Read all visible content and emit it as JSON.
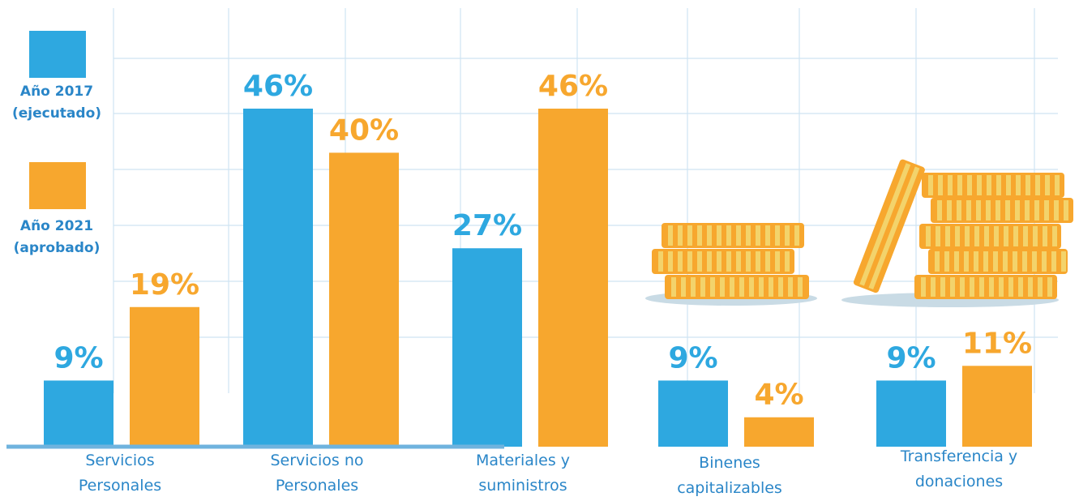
{
  "colors": {
    "series_2017": "#2ea8e0",
    "series_2021": "#f7a72e",
    "legend_text_2017": "#2a86c8",
    "legend_text_2021": "#2a86c8",
    "grid": "#cfe4f2",
    "baseline": "#6fb3de",
    "coin": "#f7a72e",
    "coin_stripe": "#f3d36b",
    "coin_shadow": "#c9dbe5"
  },
  "legend": [
    {
      "line1": "Año 2017",
      "line2": "(ejecutado)",
      "color": "#2ea8e0"
    },
    {
      "line1": "Año 2021",
      "line2": "(aprobado)",
      "color": "#f7a72e"
    }
  ],
  "chart_data": {
    "type": "bar",
    "categories": [
      [
        "Servicios",
        "Personales"
      ],
      [
        "Servicios no",
        "Personales"
      ],
      [
        "Materiales y",
        "suministros"
      ],
      [
        "Binenes",
        "capitalizables"
      ],
      [
        "Transferencia y",
        "donaciones"
      ]
    ],
    "series": [
      {
        "name": "Año 2017 (ejecutado)",
        "values": [
          9,
          46,
          27,
          9,
          9
        ],
        "labels": [
          "9%",
          "46%",
          "27%",
          "9%",
          "9%"
        ]
      },
      {
        "name": "Año 2021 (aprobado)",
        "values": [
          19,
          40,
          46,
          4,
          11
        ],
        "labels": [
          "19%",
          "40%",
          "46%",
          "4%",
          "11%"
        ]
      }
    ],
    "unit": "%",
    "grid": true,
    "legend_position": "left"
  },
  "decorations": [
    "coin-stack-icon",
    "coin-stack-icon"
  ]
}
